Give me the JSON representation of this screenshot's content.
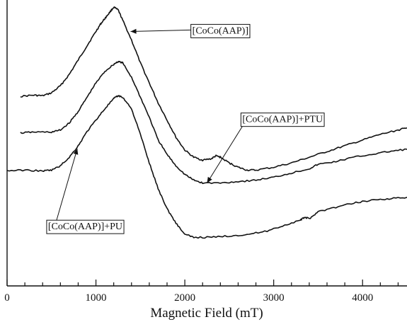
{
  "chart_data": {
    "type": "line",
    "title": "",
    "xlabel": "Magnetic Field (mT)",
    "ylabel": "",
    "xlim": [
      0,
      4500
    ],
    "ylim": [
      0,
      1
    ],
    "x_ticks": [
      0,
      1000,
      2000,
      3000,
      4000
    ],
    "x_tick_labels": [
      "0",
      "1000",
      "2000",
      "3000",
      "4000"
    ],
    "grid": false,
    "series": [
      {
        "name": "[CoCo(AAP)]",
        "points": [
          [
            150,
            0.663
          ],
          [
            300,
            0.667
          ],
          [
            400,
            0.665
          ],
          [
            500,
            0.675
          ],
          [
            600,
            0.7
          ],
          [
            700,
            0.74
          ],
          [
            800,
            0.79
          ],
          [
            900,
            0.84
          ],
          [
            1000,
            0.89
          ],
          [
            1050,
            0.915
          ],
          [
            1100,
            0.935
          ],
          [
            1150,
            0.955
          ],
          [
            1200,
            0.975
          ],
          [
            1250,
            0.965
          ],
          [
            1300,
            0.93
          ],
          [
            1400,
            0.86
          ],
          [
            1500,
            0.78
          ],
          [
            1600,
            0.71
          ],
          [
            1700,
            0.64
          ],
          [
            1800,
            0.58
          ],
          [
            1900,
            0.52
          ],
          [
            2000,
            0.475
          ],
          [
            2100,
            0.45
          ],
          [
            2200,
            0.44
          ],
          [
            2300,
            0.445
          ],
          [
            2350,
            0.455
          ],
          [
            2400,
            0.45
          ],
          [
            2500,
            0.43
          ],
          [
            2600,
            0.415
          ],
          [
            2700,
            0.405
          ],
          [
            2800,
            0.405
          ],
          [
            3000,
            0.415
          ],
          [
            3200,
            0.43
          ],
          [
            3400,
            0.45
          ],
          [
            3600,
            0.47
          ],
          [
            3800,
            0.49
          ],
          [
            4000,
            0.51
          ],
          [
            4200,
            0.53
          ],
          [
            4400,
            0.545
          ],
          [
            4500,
            0.553
          ]
        ]
      },
      {
        "name": "[CoCo(AAP)]+PTU",
        "points": [
          [
            150,
            0.535
          ],
          [
            300,
            0.538
          ],
          [
            500,
            0.538
          ],
          [
            600,
            0.545
          ],
          [
            700,
            0.57
          ],
          [
            800,
            0.61
          ],
          [
            900,
            0.66
          ],
          [
            1000,
            0.71
          ],
          [
            1100,
            0.75
          ],
          [
            1200,
            0.775
          ],
          [
            1250,
            0.785
          ],
          [
            1300,
            0.78
          ],
          [
            1400,
            0.73
          ],
          [
            1500,
            0.66
          ],
          [
            1600,
            0.59
          ],
          [
            1700,
            0.51
          ],
          [
            1800,
            0.46
          ],
          [
            1900,
            0.42
          ],
          [
            2000,
            0.39
          ],
          [
            2100,
            0.37
          ],
          [
            2200,
            0.36
          ],
          [
            2400,
            0.36
          ],
          [
            2600,
            0.365
          ],
          [
            2800,
            0.37
          ],
          [
            3000,
            0.38
          ],
          [
            3200,
            0.395
          ],
          [
            3400,
            0.41
          ],
          [
            3500,
            0.425
          ],
          [
            3700,
            0.435
          ],
          [
            3900,
            0.45
          ],
          [
            4100,
            0.46
          ],
          [
            4300,
            0.47
          ],
          [
            4500,
            0.478
          ]
        ]
      },
      {
        "name": "[CoCo(AAP)]+PU",
        "points": [
          [
            0,
            0.403
          ],
          [
            200,
            0.405
          ],
          [
            400,
            0.402
          ],
          [
            500,
            0.405
          ],
          [
            600,
            0.42
          ],
          [
            700,
            0.45
          ],
          [
            800,
            0.49
          ],
          [
            900,
            0.54
          ],
          [
            1000,
            0.58
          ],
          [
            1100,
            0.62
          ],
          [
            1200,
            0.655
          ],
          [
            1250,
            0.665
          ],
          [
            1300,
            0.66
          ],
          [
            1400,
            0.62
          ],
          [
            1500,
            0.53
          ],
          [
            1600,
            0.43
          ],
          [
            1700,
            0.34
          ],
          [
            1800,
            0.27
          ],
          [
            1900,
            0.22
          ],
          [
            2000,
            0.18
          ],
          [
            2100,
            0.17
          ],
          [
            2300,
            0.17
          ],
          [
            2500,
            0.175
          ],
          [
            2700,
            0.18
          ],
          [
            2900,
            0.19
          ],
          [
            3100,
            0.21
          ],
          [
            3300,
            0.23
          ],
          [
            3350,
            0.24
          ],
          [
            3400,
            0.235
          ],
          [
            3500,
            0.26
          ],
          [
            3700,
            0.275
          ],
          [
            3900,
            0.29
          ],
          [
            4100,
            0.3
          ],
          [
            4300,
            0.305
          ],
          [
            4500,
            0.31
          ]
        ]
      }
    ],
    "annotations": [
      {
        "text": "[CoCo(AAP)]",
        "target": [
          1390,
          0.89
        ],
        "label_at": [
          2400,
          0.895
        ]
      },
      {
        "text": "[CoCo(AAP)]+PTU",
        "target": [
          2250,
          0.36
        ],
        "label_at": [
          3100,
          0.585
        ]
      },
      {
        "text": "[CoCo(AAP)]+PU",
        "target": [
          790,
          0.48
        ],
        "label_at": [
          880,
          0.21
        ]
      }
    ]
  }
}
